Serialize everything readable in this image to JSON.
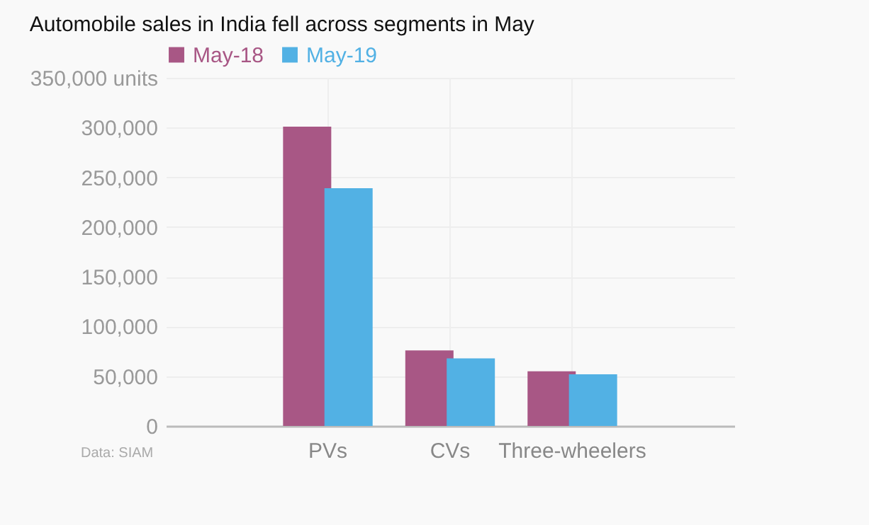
{
  "chart_data": {
    "type": "bar",
    "title": "Automobile sales in India fell across segments in May",
    "categories": [
      "PVs",
      "CVs",
      "Three-wheelers"
    ],
    "series": [
      {
        "name": "May-18",
        "color": "#a85785",
        "values": [
          301000,
          76000,
          55000
        ]
      },
      {
        "name": "May-19",
        "color": "#52b1e4",
        "values": [
          239000,
          68000,
          52000
        ]
      }
    ],
    "ylim": [
      0,
      350000
    ],
    "yticks": [
      0,
      {
        "value": 50000,
        "label": "50,000"
      },
      {
        "value": 100000,
        "label": "100,000"
      },
      {
        "value": 150000,
        "label": "150,000"
      },
      {
        "value": 200000,
        "label": "200,000"
      },
      {
        "value": 250000,
        "label": "250,000"
      },
      {
        "value": 300000,
        "label": "300,000"
      },
      {
        "value": 350000,
        "label": "350,000 units"
      }
    ],
    "grid": true,
    "legend": "top left",
    "annotations": [
      "Data: SIAM"
    ]
  }
}
